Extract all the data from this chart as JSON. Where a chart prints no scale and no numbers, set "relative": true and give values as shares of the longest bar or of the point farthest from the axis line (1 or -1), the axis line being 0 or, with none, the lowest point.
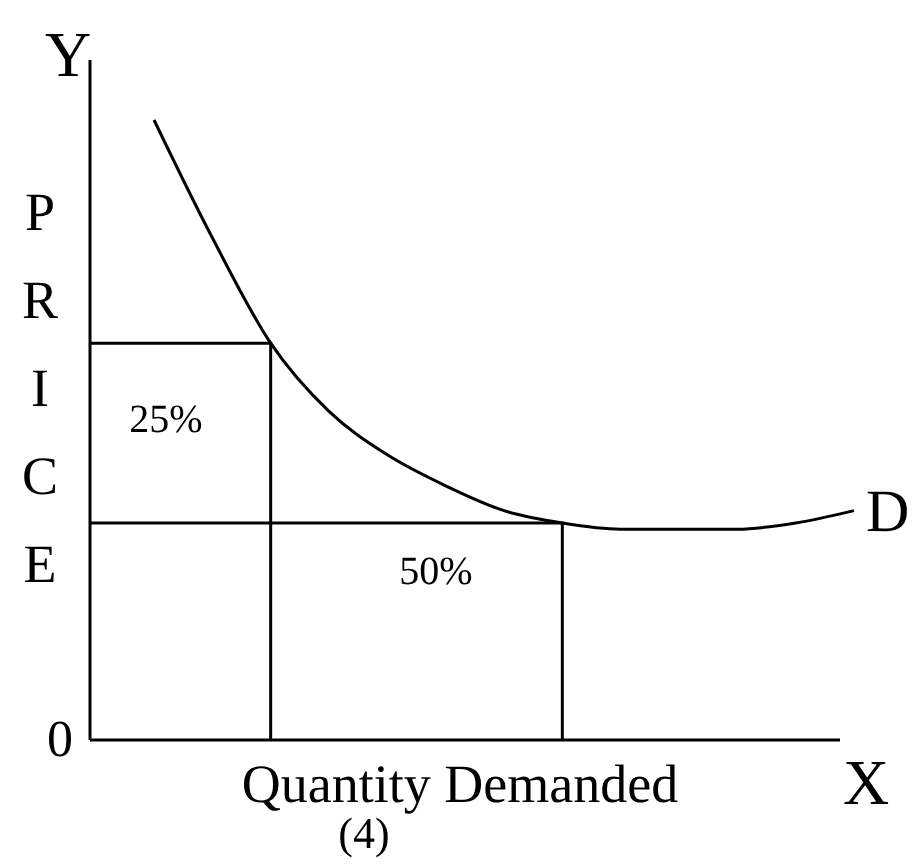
{
  "chart_data": {
    "type": "line",
    "relative": true,
    "xlabel": "Quantity Demanded",
    "ylabel": "PRICE",
    "categories": [
      null,
      null,
      null,
      null,
      null,
      null,
      null,
      null,
      null,
      null,
      null,
      null,
      null
    ],
    "series": [
      {
        "name": "D",
        "color": "#000000",
        "values": [
          1,
          0.81,
          0.64,
          0.53,
          0.46,
          0.41,
          0.37,
          0.35,
          0.34,
          0.34,
          0.34,
          0.35,
          0.37
        ]
      }
    ],
    "ref_lines": [
      {
        "axis": "y",
        "value": 0.64
      },
      {
        "axis": "y",
        "value": 0.35
      }
    ],
    "annotations": [
      "Y",
      "X",
      "0",
      "(4)",
      "25%",
      "50%"
    ],
    "legend": false,
    "marker": "none",
    "line_style": "solid"
  }
}
